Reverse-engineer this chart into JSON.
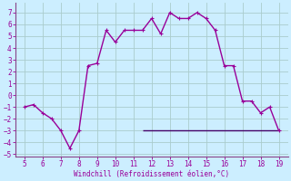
{
  "x": [
    5,
    5.5,
    6,
    6.5,
    7,
    7.5,
    8,
    8.5,
    9,
    9.5,
    10,
    10.5,
    11,
    11.5,
    12,
    12.5,
    13,
    13.5,
    14,
    14.5,
    15,
    15.5,
    16,
    16.5,
    17,
    17.5,
    18,
    18.5,
    19
  ],
  "y": [
    -1,
    -0.8,
    -1.5,
    -2,
    -3,
    -4.5,
    -3,
    2.5,
    2.7,
    5.5,
    4.5,
    5.5,
    5.5,
    5.5,
    6.5,
    5.2,
    7,
    6.5,
    6.5,
    7,
    6.5,
    5.5,
    2.5,
    2.5,
    -0.5,
    -0.5,
    -1.5,
    -1,
    -3
  ],
  "hline_y": -3,
  "hline_x_start": 11.5,
  "hline_x_end": 19,
  "xlim": [
    4.5,
    19.5
  ],
  "ylim": [
    -5.2,
    7.8
  ],
  "yticks": [
    -5,
    -4,
    -3,
    -2,
    -1,
    0,
    1,
    2,
    3,
    4,
    5,
    6,
    7
  ],
  "xticks": [
    5,
    6,
    7,
    8,
    9,
    10,
    11,
    12,
    13,
    14,
    15,
    16,
    17,
    18,
    19
  ],
  "xlabel": "Windchill (Refroidissement éolien,°C)",
  "line_color": "#990099",
  "hline_color": "#440066",
  "bg_color": "#cceeff",
  "grid_color": "#aacccc",
  "spine_color": "#884488"
}
